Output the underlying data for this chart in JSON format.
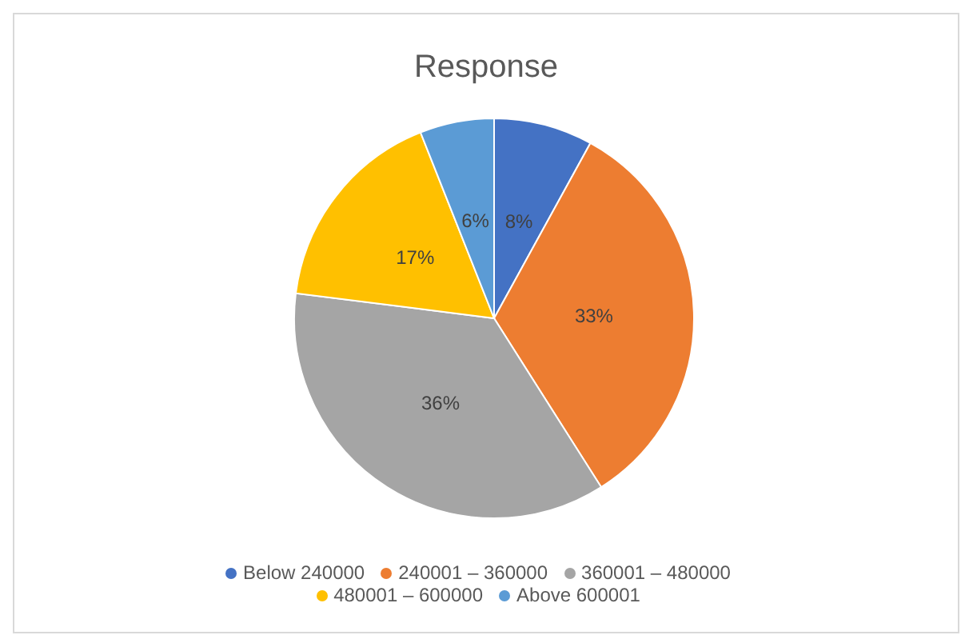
{
  "chart_data": {
    "type": "pie",
    "title": "Response",
    "categories": [
      "Below 240000",
      "240001 – 360000",
      "360001 – 480000",
      "480001 – 600000",
      "Above 600001"
    ],
    "values": [
      8,
      33,
      36,
      17,
      6
    ],
    "colors": [
      "#4472c4",
      "#ed7d31",
      "#a5a5a5",
      "#ffc000",
      "#5b9bd5"
    ],
    "value_labels": [
      "8%",
      "33%",
      "36%",
      "17%",
      "6%"
    ],
    "legend": "bottom"
  }
}
